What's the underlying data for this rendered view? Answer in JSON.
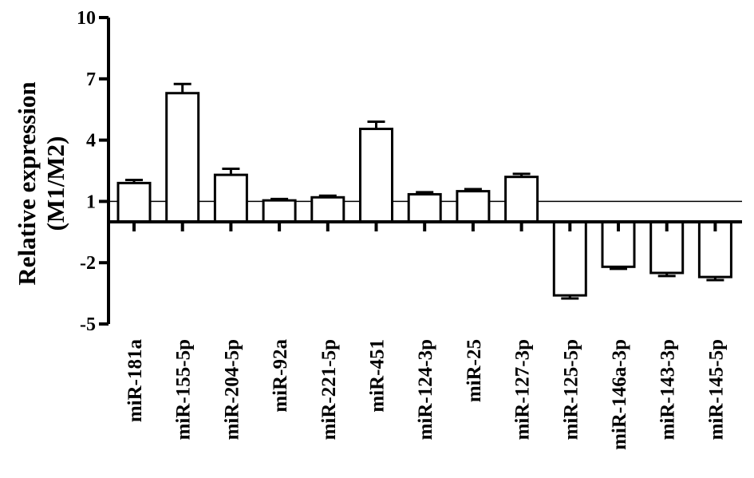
{
  "chart_data": {
    "type": "bar",
    "ylabel_lines": [
      "Relative expression",
      "(M1/M2)"
    ],
    "ylim": [
      -5,
      10
    ],
    "yticks": [
      10,
      7,
      4,
      1,
      -2,
      -5
    ],
    "reference_line": 1,
    "baseline": 0,
    "categories": [
      "miR-181a",
      "miR-155-5p",
      "miR-204-5p",
      "miR-92a",
      "miR-221-5p",
      "miR-451",
      "miR-124-3p",
      "miR-25",
      "miR-127-3p",
      "miR-125-5p",
      "miR-146a-3p",
      "miR-143-3p",
      "miR-145-5p"
    ],
    "values": [
      1.9,
      6.3,
      2.3,
      1.05,
      1.2,
      4.55,
      1.35,
      1.5,
      2.2,
      -3.6,
      -2.2,
      -2.5,
      -2.7
    ],
    "errors": [
      0.15,
      0.45,
      0.3,
      0.07,
      0.08,
      0.35,
      0.1,
      0.1,
      0.15,
      0.15,
      0.1,
      0.15,
      0.15
    ]
  }
}
